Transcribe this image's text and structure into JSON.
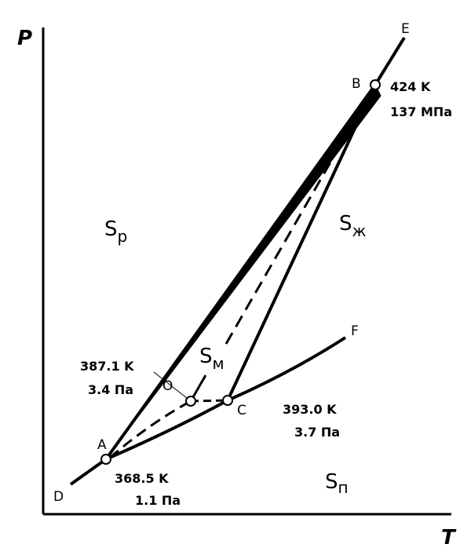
{
  "axes": {
    "y_label": "P",
    "x_label": "T"
  },
  "points": {
    "E": "E",
    "B": "B",
    "F": "F",
    "A": "A",
    "O": "O",
    "C": "C",
    "D": "D"
  },
  "annotations": {
    "B": [
      "424 K",
      "137 МПа"
    ],
    "O": [
      "387.1 K",
      "3.4 Па"
    ],
    "C": [
      "393.0 K",
      "3.7 Па"
    ],
    "A": [
      "368.5 K",
      "1.1 Па"
    ]
  },
  "regions": {
    "rhombic": {
      "symbol": "S",
      "subscript": "р"
    },
    "liquid": {
      "symbol": "S",
      "subscript": "ж"
    },
    "monoclinic": {
      "symbol": "S",
      "subscript": "м"
    },
    "vapor": {
      "symbol": "S",
      "subscript": "п"
    }
  }
}
